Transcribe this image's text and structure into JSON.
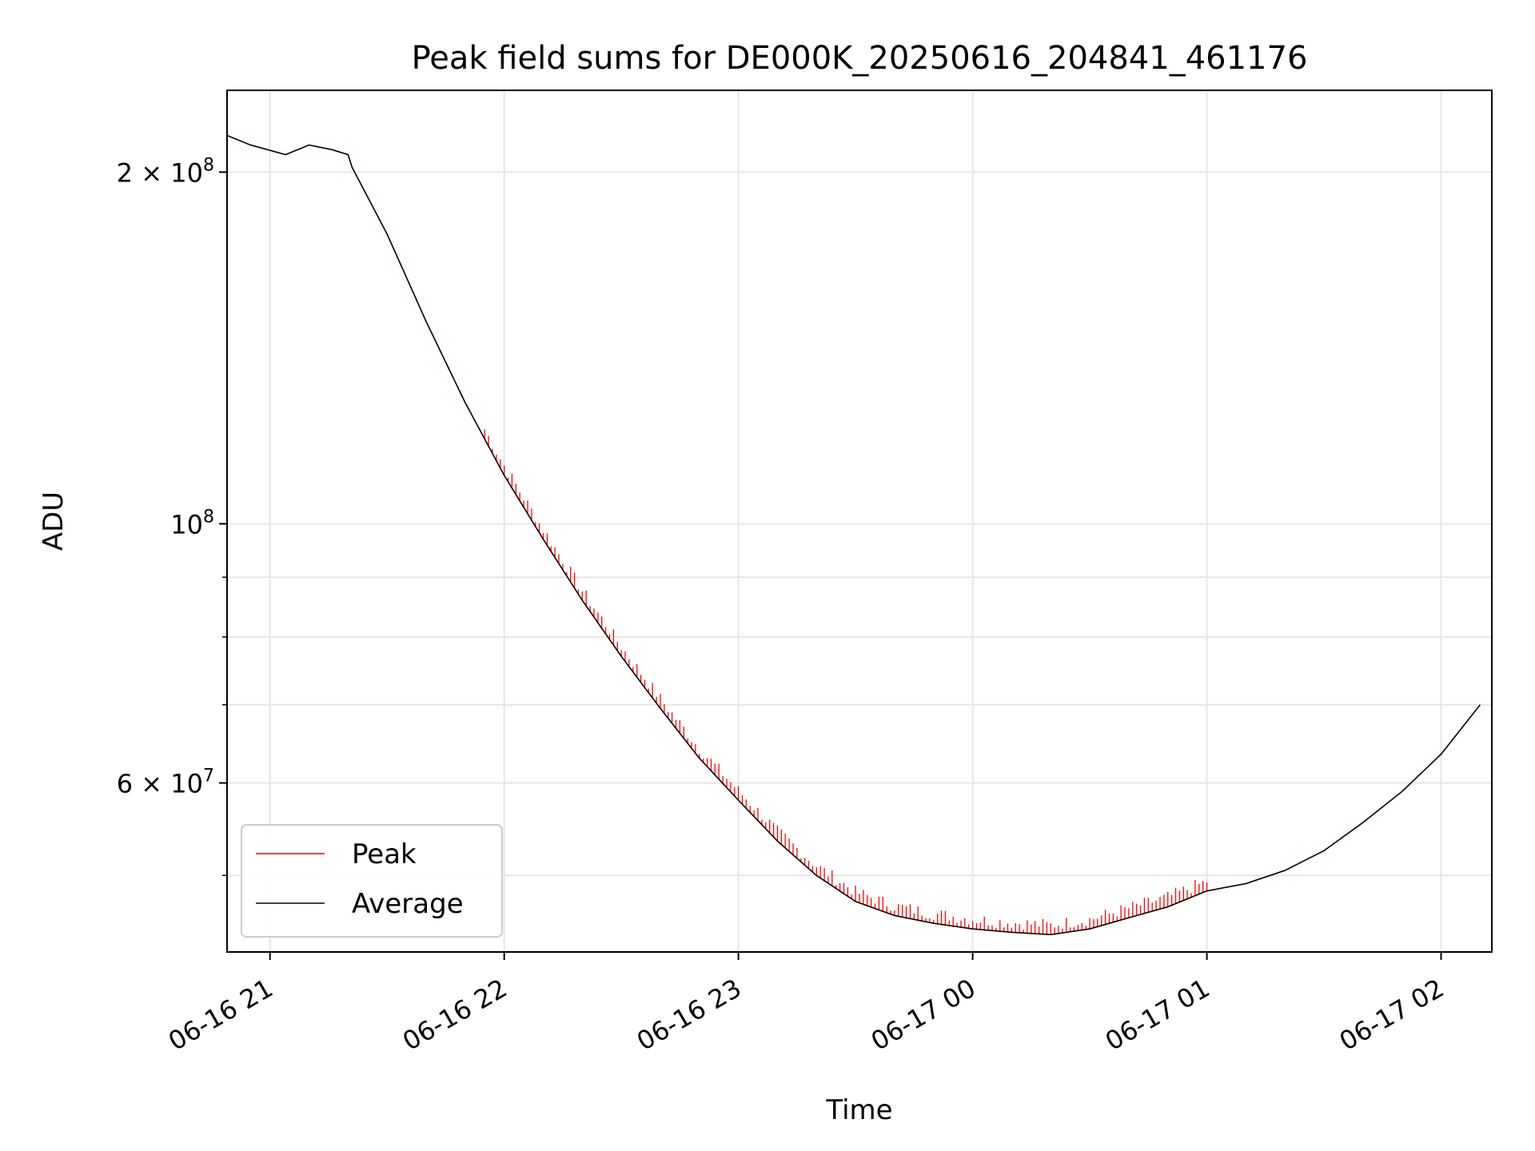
{
  "chart_data": {
    "type": "line",
    "title": "Peak field sums for DE000K_20250616_204841_461176",
    "xlabel": "Time",
    "ylabel": "ADU",
    "y_scale": "log",
    "ylim": [
      43000000,
      235000000
    ],
    "xlim": [
      "2025-06-16 20:49:00",
      "2025-06-17 02:13:00"
    ],
    "grid": true,
    "legend_position": "lower-left",
    "x_ticks": [
      {
        "t": "2025-06-16 21:00",
        "label": "06-16 21"
      },
      {
        "t": "2025-06-16 22:00",
        "label": "06-16 22"
      },
      {
        "t": "2025-06-16 23:00",
        "label": "06-16 23"
      },
      {
        "t": "2025-06-17 00:00",
        "label": "06-17 00"
      },
      {
        "t": "2025-06-17 01:00",
        "label": "06-17 01"
      },
      {
        "t": "2025-06-17 02:00",
        "label": "06-17 02"
      }
    ],
    "y_ticks": [
      {
        "value": 200000000,
        "label": "2 × 10^8",
        "mant": "2 × 10",
        "exp": "8"
      },
      {
        "value": 100000000,
        "label": "10^8",
        "mant": "10",
        "exp": "8"
      },
      {
        "value": 60000000,
        "label": "6 × 10^7",
        "mant": "6 × 10",
        "exp": "7"
      }
    ],
    "y_minor_ticks": [
      50000000,
      70000000,
      80000000,
      90000000
    ],
    "series": [
      {
        "name": "Peak",
        "color": "#ff0000",
        "noise": "upward spikes from ~21:55 to ~01:00",
        "points": [
          [
            "2025-06-16 20:49",
            215000000
          ],
          [
            "2025-06-16 20:55",
            211000000
          ],
          [
            "2025-06-16 21:04",
            207000000
          ],
          [
            "2025-06-16 21:10",
            211000000
          ],
          [
            "2025-06-16 21:16",
            209000000
          ],
          [
            "2025-06-16 21:20",
            207000000
          ],
          [
            "2025-06-16 21:21",
            202000000
          ],
          [
            "2025-06-16 21:30",
            177000000
          ],
          [
            "2025-06-16 21:40",
            149000000
          ],
          [
            "2025-06-16 21:50",
            127000000
          ],
          [
            "2025-06-16 22:00",
            110000000
          ],
          [
            "2025-06-16 22:10",
            97000000
          ],
          [
            "2025-06-16 22:20",
            86000000
          ],
          [
            "2025-06-16 22:30",
            77000000
          ],
          [
            "2025-06-16 22:40",
            69500000
          ],
          [
            "2025-06-16 22:50",
            63000000
          ],
          [
            "2025-06-16 23:00",
            58000000
          ],
          [
            "2025-06-16 23:10",
            53500000
          ],
          [
            "2025-06-16 23:20",
            50000000
          ],
          [
            "2025-06-16 23:30",
            47500000
          ],
          [
            "2025-06-16 23:40",
            46200000
          ],
          [
            "2025-06-16 23:50",
            45500000
          ],
          [
            "2025-06-17 00:00",
            45000000
          ],
          [
            "2025-06-17 00:10",
            44700000
          ],
          [
            "2025-06-17 00:20",
            44500000
          ],
          [
            "2025-06-17 00:30",
            45000000
          ],
          [
            "2025-06-17 00:40",
            46000000
          ],
          [
            "2025-06-17 00:50",
            47000000
          ],
          [
            "2025-06-17 01:00",
            48500000
          ],
          [
            "2025-06-17 01:10",
            49200000
          ],
          [
            "2025-06-17 01:20",
            50500000
          ],
          [
            "2025-06-17 01:30",
            52500000
          ],
          [
            "2025-06-17 01:40",
            55500000
          ],
          [
            "2025-06-17 01:50",
            59000000
          ],
          [
            "2025-06-17 02:00",
            63500000
          ],
          [
            "2025-06-17 02:10",
            70000000
          ]
        ]
      },
      {
        "name": "Average",
        "color": "#000000",
        "points": [
          [
            "2025-06-16 20:49",
            215000000
          ],
          [
            "2025-06-16 20:55",
            211000000
          ],
          [
            "2025-06-16 21:04",
            207000000
          ],
          [
            "2025-06-16 21:10",
            211000000
          ],
          [
            "2025-06-16 21:16",
            209000000
          ],
          [
            "2025-06-16 21:20",
            207000000
          ],
          [
            "2025-06-16 21:21",
            202000000
          ],
          [
            "2025-06-16 21:30",
            177000000
          ],
          [
            "2025-06-16 21:40",
            149000000
          ],
          [
            "2025-06-16 21:50",
            127000000
          ],
          [
            "2025-06-16 22:00",
            110000000
          ],
          [
            "2025-06-16 22:10",
            97000000
          ],
          [
            "2025-06-16 22:20",
            86000000
          ],
          [
            "2025-06-16 22:30",
            77000000
          ],
          [
            "2025-06-16 22:40",
            69500000
          ],
          [
            "2025-06-16 22:50",
            63000000
          ],
          [
            "2025-06-16 23:00",
            58000000
          ],
          [
            "2025-06-16 23:10",
            53500000
          ],
          [
            "2025-06-16 23:20",
            50000000
          ],
          [
            "2025-06-16 23:30",
            47500000
          ],
          [
            "2025-06-16 23:40",
            46200000
          ],
          [
            "2025-06-16 23:50",
            45500000
          ],
          [
            "2025-06-17 00:00",
            45000000
          ],
          [
            "2025-06-17 00:10",
            44700000
          ],
          [
            "2025-06-17 00:20",
            44500000
          ],
          [
            "2025-06-17 00:30",
            45000000
          ],
          [
            "2025-06-17 00:40",
            46000000
          ],
          [
            "2025-06-17 00:50",
            47000000
          ],
          [
            "2025-06-17 01:00",
            48500000
          ],
          [
            "2025-06-17 01:10",
            49200000
          ],
          [
            "2025-06-17 01:20",
            50500000
          ],
          [
            "2025-06-17 01:30",
            52500000
          ],
          [
            "2025-06-17 01:40",
            55500000
          ],
          [
            "2025-06-17 01:50",
            59000000
          ],
          [
            "2025-06-17 02:00",
            63500000
          ],
          [
            "2025-06-17 02:10",
            70000000
          ]
        ]
      }
    ]
  }
}
